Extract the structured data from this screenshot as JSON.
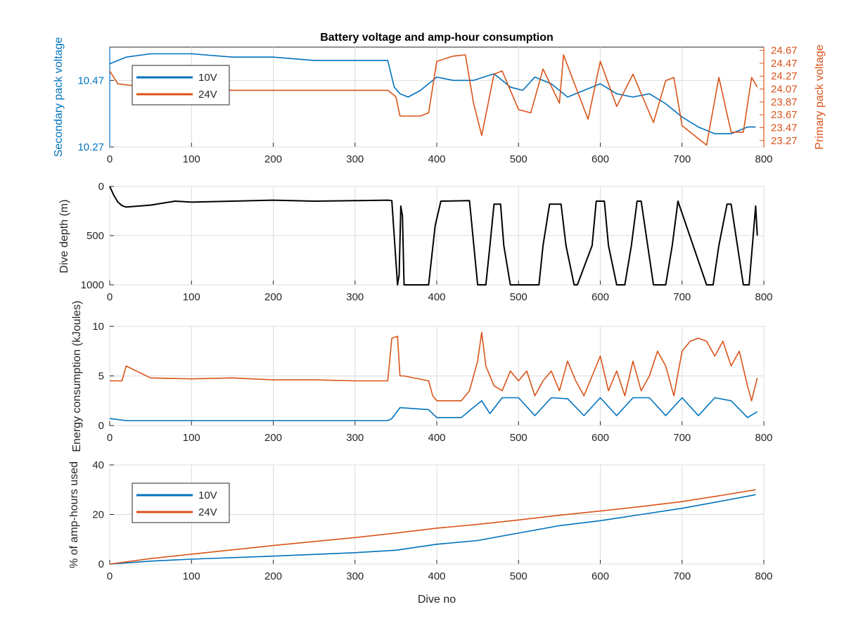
{
  "colors": {
    "v10": "#0072BD",
    "v24": "#D95319",
    "depth": "#000000",
    "axis": "#262626",
    "grid": "#dcdcdc"
  },
  "chart_data": [
    {
      "id": "voltage",
      "type": "line",
      "title": "Battery voltage and amp-hour consumption",
      "xlabel": "",
      "ylabel_left": "Secondary pack voltage",
      "ylabel_right": "Primary pack voltage",
      "xlim": [
        0,
        800
      ],
      "ylim_left": [
        10.27,
        10.57
      ],
      "ylim_right": [
        23.17,
        24.72
      ],
      "xticks": [
        "0",
        "100",
        "200",
        "300",
        "400",
        "500",
        "600",
        "700",
        "800"
      ],
      "yticks_left": [
        "10.27",
        "10.47"
      ],
      "yticks_right": [
        "23.27",
        "23.47",
        "23.67",
        "23.87",
        "24.07",
        "24.27",
        "24.47",
        "24.67"
      ],
      "legend": {
        "location": "top-left",
        "entries": [
          "10V",
          "24V"
        ]
      },
      "series": [
        {
          "name": "10V",
          "axis": "left",
          "x": [
            0,
            20,
            50,
            100,
            150,
            200,
            250,
            300,
            340,
            348,
            355,
            365,
            380,
            400,
            420,
            445,
            470,
            490,
            505,
            520,
            540,
            560,
            580,
            600,
            620,
            640,
            660,
            680,
            700,
            720,
            740,
            760,
            780,
            790
          ],
          "y": [
            10.52,
            10.54,
            10.55,
            10.55,
            10.54,
            10.54,
            10.53,
            10.53,
            10.53,
            10.45,
            10.43,
            10.42,
            10.44,
            10.48,
            10.47,
            10.47,
            10.49,
            10.45,
            10.44,
            10.48,
            10.46,
            10.42,
            10.44,
            10.46,
            10.43,
            10.42,
            10.43,
            10.4,
            10.36,
            10.33,
            10.31,
            10.31,
            10.33,
            10.33
          ]
        },
        {
          "name": "24V",
          "axis": "right",
          "x": [
            0,
            10,
            30,
            60,
            100,
            150,
            200,
            250,
            300,
            340,
            350,
            355,
            380,
            390,
            400,
            420,
            435,
            445,
            455,
            470,
            480,
            500,
            515,
            530,
            550,
            555,
            570,
            585,
            600,
            620,
            640,
            650,
            665,
            680,
            690,
            700,
            720,
            730,
            745,
            760,
            775,
            785,
            792
          ],
          "y": [
            24.35,
            24.15,
            24.12,
            24.05,
            24.08,
            24.05,
            24.05,
            24.05,
            24.05,
            24.05,
            23.95,
            23.65,
            23.65,
            23.7,
            24.5,
            24.58,
            24.6,
            23.85,
            23.35,
            24.3,
            24.35,
            23.75,
            23.7,
            24.38,
            23.85,
            24.6,
            24.1,
            23.6,
            24.5,
            23.8,
            24.3,
            24.0,
            23.55,
            24.2,
            24.25,
            23.5,
            23.3,
            23.2,
            24.25,
            23.4,
            23.4,
            24.25,
            24.1
          ]
        }
      ]
    },
    {
      "id": "depth",
      "type": "line",
      "title": "",
      "xlabel": "",
      "ylabel": "Dive depth (m)",
      "xlim": [
        0,
        800
      ],
      "ylim": [
        0,
        1000
      ],
      "y_reversed": true,
      "xticks": [
        "0",
        "100",
        "200",
        "300",
        "400",
        "500",
        "600",
        "700",
        "800"
      ],
      "yticks": [
        "0",
        "500",
        "1000"
      ],
      "series": [
        {
          "name": "",
          "x": [
            0,
            5,
            10,
            15,
            20,
            50,
            80,
            100,
            150,
            200,
            250,
            300,
            340,
            345,
            352,
            354,
            356,
            358,
            360,
            390,
            398,
            405,
            440,
            450,
            460,
            465,
            470,
            478,
            482,
            490,
            495,
            525,
            530,
            538,
            552,
            558,
            568,
            572,
            590,
            595,
            605,
            610,
            620,
            630,
            638,
            645,
            650,
            665,
            680,
            688,
            695,
            730,
            738,
            745,
            755,
            760,
            775,
            782,
            790,
            792
          ],
          "y": [
            0,
            90,
            160,
            195,
            210,
            190,
            150,
            160,
            150,
            140,
            150,
            145,
            140,
            145,
            1000,
            900,
            200,
            300,
            1000,
            1000,
            400,
            150,
            145,
            1000,
            1000,
            600,
            180,
            180,
            600,
            1000,
            1000,
            1000,
            600,
            180,
            180,
            600,
            1000,
            1000,
            600,
            150,
            150,
            600,
            1000,
            1000,
            600,
            150,
            150,
            1000,
            1000,
            600,
            150,
            1000,
            1000,
            600,
            180,
            180,
            1000,
            1000,
            200,
            500
          ]
        }
      ]
    },
    {
      "id": "energy",
      "type": "line",
      "title": "",
      "xlabel": "",
      "ylabel": "Energy consumption (kJoules)",
      "xlim": [
        0,
        800
      ],
      "ylim": [
        0,
        10
      ],
      "xticks": [
        "0",
        "100",
        "200",
        "300",
        "400",
        "500",
        "600",
        "700",
        "800"
      ],
      "yticks": [
        "0",
        "5",
        "10"
      ],
      "series": [
        {
          "name": "10V",
          "x": [
            0,
            20,
            100,
            200,
            300,
            340,
            345,
            355,
            390,
            400,
            430,
            440,
            455,
            465,
            480,
            500,
            520,
            540,
            560,
            580,
            600,
            620,
            640,
            660,
            680,
            700,
            720,
            740,
            760,
            780,
            792
          ],
          "y": [
            0.7,
            0.5,
            0.5,
            0.5,
            0.5,
            0.5,
            0.7,
            1.8,
            1.6,
            0.8,
            0.8,
            1.5,
            2.5,
            1.2,
            2.8,
            2.8,
            1.0,
            2.8,
            2.7,
            1.0,
            2.8,
            1.0,
            2.8,
            2.8,
            1.0,
            2.8,
            1.0,
            2.8,
            2.5,
            0.8,
            1.4
          ]
        },
        {
          "name": "24V",
          "x": [
            0,
            15,
            20,
            50,
            100,
            150,
            200,
            250,
            300,
            340,
            345,
            352,
            355,
            360,
            390,
            395,
            400,
            430,
            440,
            450,
            455,
            460,
            470,
            480,
            490,
            500,
            510,
            520,
            530,
            540,
            550,
            560,
            570,
            580,
            590,
            600,
            610,
            620,
            630,
            640,
            650,
            660,
            670,
            680,
            690,
            700,
            710,
            720,
            730,
            740,
            750,
            760,
            770,
            780,
            785,
            792
          ],
          "y": [
            4.5,
            4.5,
            6.0,
            4.8,
            4.7,
            4.8,
            4.6,
            4.6,
            4.5,
            4.5,
            8.8,
            9.0,
            5.0,
            5.0,
            4.5,
            3.0,
            2.5,
            2.5,
            3.5,
            6.5,
            9.4,
            6.0,
            4.0,
            3.5,
            5.5,
            4.5,
            5.5,
            3.0,
            4.5,
            5.5,
            3.5,
            6.5,
            4.5,
            3.0,
            5.0,
            7.0,
            3.5,
            5.5,
            3.0,
            6.5,
            3.5,
            5.0,
            7.5,
            6.0,
            3.0,
            7.5,
            8.5,
            8.8,
            8.5,
            7.0,
            8.5,
            6.0,
            7.5,
            4.0,
            2.5,
            4.8
          ]
        }
      ]
    },
    {
      "id": "amphours",
      "type": "line",
      "title": "",
      "xlabel": "Dive no",
      "ylabel": "% of amp-hours used",
      "xlim": [
        0,
        800
      ],
      "ylim": [
        0,
        40
      ],
      "xticks": [
        "0",
        "100",
        "200",
        "300",
        "400",
        "500",
        "600",
        "700",
        "800"
      ],
      "yticks": [
        "0",
        "20",
        "40"
      ],
      "legend": {
        "location": "top-left",
        "entries": [
          "10V",
          "24V"
        ]
      },
      "series": [
        {
          "name": "10V",
          "x": [
            0,
            50,
            100,
            200,
            300,
            350,
            400,
            450,
            500,
            550,
            600,
            650,
            700,
            750,
            790
          ],
          "y": [
            0,
            1.2,
            2.0,
            3.2,
            4.6,
            5.6,
            8.0,
            9.5,
            12.5,
            15.5,
            17.5,
            20.0,
            22.5,
            25.5,
            28.0
          ]
        },
        {
          "name": "24V",
          "x": [
            0,
            50,
            100,
            200,
            300,
            350,
            400,
            450,
            500,
            550,
            600,
            650,
            700,
            750,
            790
          ],
          "y": [
            0,
            2.2,
            4.0,
            7.5,
            10.7,
            12.5,
            14.5,
            16.0,
            17.8,
            19.7,
            21.4,
            23.2,
            25.2,
            27.8,
            30.0
          ]
        }
      ]
    }
  ]
}
